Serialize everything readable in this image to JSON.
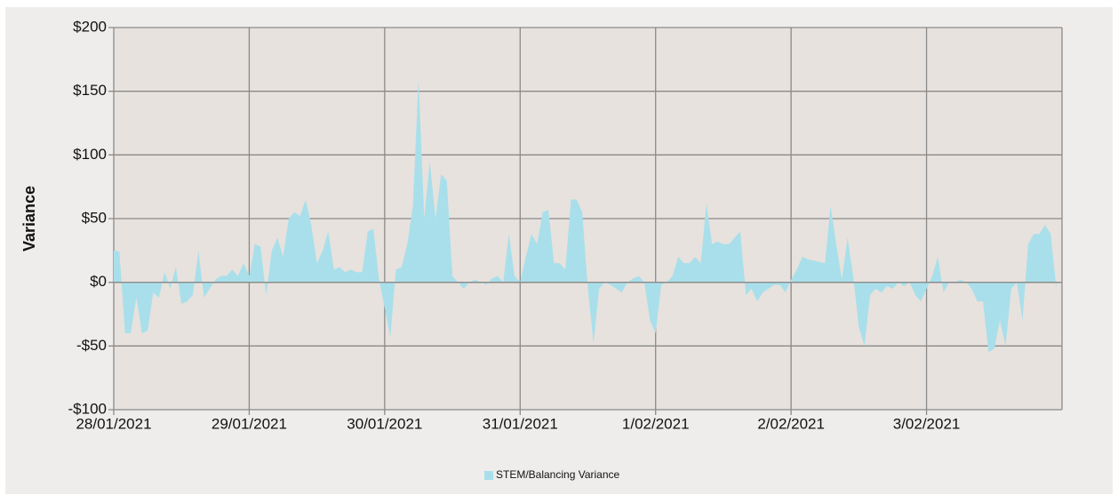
{
  "chart_data": {
    "type": "area",
    "y_label": "Variance",
    "categories": [
      "28/01/2021",
      null,
      null,
      null,
      null,
      null,
      null,
      null,
      null,
      null,
      null,
      null,
      null,
      null,
      null,
      null,
      null,
      null,
      null,
      null,
      null,
      null,
      null,
      null,
      "29/01/2021",
      null,
      null,
      null,
      null,
      null,
      null,
      null,
      null,
      null,
      null,
      null,
      null,
      null,
      null,
      null,
      null,
      null,
      null,
      null,
      null,
      null,
      null,
      null,
      "30/01/2021",
      null,
      null,
      null,
      null,
      null,
      null,
      null,
      null,
      null,
      null,
      null,
      null,
      null,
      null,
      null,
      null,
      null,
      null,
      null,
      null,
      null,
      null,
      null,
      "31/01/2021",
      null,
      null,
      null,
      null,
      null,
      null,
      null,
      null,
      null,
      null,
      null,
      null,
      null,
      null,
      null,
      null,
      null,
      null,
      null,
      null,
      null,
      null,
      null,
      "1/02/2021",
      null,
      null,
      null,
      null,
      null,
      null,
      null,
      null,
      null,
      null,
      null,
      null,
      null,
      null,
      null,
      null,
      null,
      null,
      null,
      null,
      null,
      null,
      null,
      "2/02/2021",
      null,
      null,
      null,
      null,
      null,
      null,
      null,
      null,
      null,
      null,
      null,
      null,
      null,
      null,
      null,
      null,
      null,
      null,
      null,
      null,
      null,
      null,
      null,
      "3/02/2021",
      null,
      null,
      null,
      null,
      null,
      null,
      null,
      null,
      null,
      null,
      null,
      null,
      null,
      null,
      null,
      null,
      null,
      null,
      null,
      null,
      null,
      null,
      null
    ],
    "series": [
      {
        "name": "STEM/Balancing Variance",
        "color": "#a9dfeb",
        "values": [
          25,
          24,
          -40,
          -40,
          -12,
          -40,
          -38,
          -8,
          -12,
          8,
          -5,
          12,
          -17,
          -15,
          -10,
          25,
          -12,
          -5,
          2,
          5,
          5,
          10,
          5,
          15,
          5,
          30,
          28,
          -10,
          25,
          35,
          20,
          50,
          55,
          52,
          65,
          45,
          15,
          25,
          40,
          10,
          12,
          8,
          10,
          8,
          8,
          40,
          42,
          2,
          -20,
          -43,
          10,
          12,
          30,
          60,
          160,
          50,
          95,
          50,
          85,
          80,
          5,
          0,
          -5,
          0,
          2,
          0,
          -2,
          3,
          5,
          0,
          38,
          5,
          0,
          20,
          38,
          30,
          55,
          57,
          15,
          15,
          10,
          65,
          65,
          55,
          -5,
          -48,
          -5,
          0,
          -2,
          -5,
          -8,
          0,
          3,
          5,
          0,
          -30,
          -40,
          -2,
          0,
          5,
          20,
          15,
          15,
          20,
          15,
          62,
          30,
          32,
          30,
          30,
          35,
          40,
          -10,
          -5,
          -15,
          -8,
          -5,
          -2,
          -2,
          -8,
          2,
          10,
          20,
          18,
          17,
          16,
          15,
          60,
          30,
          2,
          35,
          5,
          -35,
          -50,
          -10,
          -5,
          -8,
          -3,
          -5,
          0,
          -3,
          0,
          -10,
          -15,
          -5,
          5,
          20,
          -8,
          0,
          0,
          2,
          0,
          -5,
          -15,
          -15,
          -55,
          -52,
          -30,
          -50,
          -5,
          0,
          -30,
          30,
          38,
          38,
          45,
          38,
          -5
        ]
      }
    ],
    "ylim": [
      -100,
      200
    ],
    "yticks": [
      {
        "value": -100,
        "label": "-$100"
      },
      {
        "value": -50,
        "label": "-$50"
      },
      {
        "value": 0,
        "label": "$0"
      },
      {
        "value": 50,
        "label": "$50"
      },
      {
        "value": 100,
        "label": "$100"
      },
      {
        "value": 150,
        "label": "$150"
      },
      {
        "value": 200,
        "label": "$200"
      }
    ],
    "grid": true,
    "legend": "bottom"
  }
}
